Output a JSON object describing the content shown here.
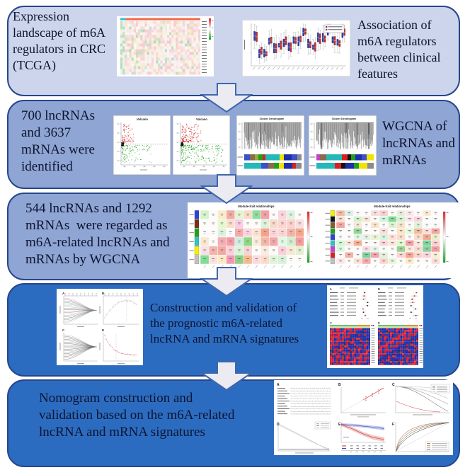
{
  "colors": {
    "panel_light": "#ccd5ec",
    "panel_medium": "#8fa5d3",
    "panel_dark": "#2c6cc0",
    "panel_border": "#26468c",
    "arrow_fill": "#ebebf1",
    "arrow_border": "#3f66ac",
    "text_dark": "#0d1430"
  },
  "panels": [
    {
      "left_text": "Expression\nlandscape of m6A\nregulators in CRC\n(TCGA)",
      "right_text": "Association of\nm6A regulators\nbetween clinical\nfeatures"
    },
    {
      "left_text": "700 lncRNAs\nand 3637\nmRNAs were\nidentified",
      "right_text": "WGCNA of\nlncRNAs and\nmRNAs"
    },
    {
      "text": "544 lncRNAs and 1292\nmRNAs  were regarded as\nm6A-related lncRNAs and\nmRNAs by WGCNA"
    },
    {
      "text": "Construction and validation of\nthe prognostic m6A-related\nlncRNA and mRNA signatures"
    },
    {
      "text": "Nomogram construction and\nvalidation based on the m6A-related\nlncRNA and mRNA signatures"
    }
  ],
  "figures": {
    "volcano_title": "Volcano",
    "dendrogram_title": "Cluster Dendrogram",
    "module_trait_title": "Module-trait relationships",
    "subpanel_letters": [
      "A",
      "B",
      "C",
      "D",
      "E",
      "F"
    ]
  }
}
